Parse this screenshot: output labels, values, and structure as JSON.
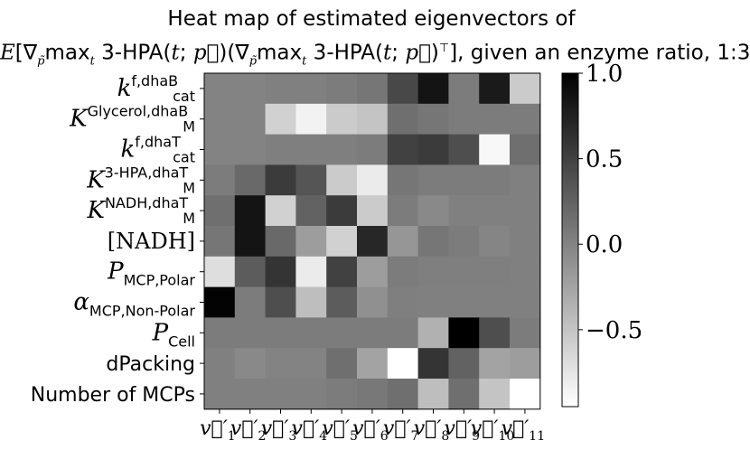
{
  "title": {
    "line1": "Heat map of estimated eigenvectors of",
    "line2": "E[∇p̃ maxt 3-HPA(t; p⃗)(∇p̃ maxt 3-HPA(t; p⃗)ᵀ], given an enzyme ratio, 1:3"
  },
  "chart_data": {
    "type": "heatmap",
    "title": "Heat map of estimated eigenvectors of E[∇p̃ maxt 3-HPA(t; p⃗)(∇p̃ maxt 3-HPA(t; p⃗)ᵀ], given an enzyme ratio, 1:3",
    "rows": [
      {
        "base": "k",
        "sup": "f,dhaB",
        "sub": "cat",
        "style": "math"
      },
      {
        "base": "K",
        "sup": "Glycerol,dhaB",
        "sub": "M",
        "style": "math"
      },
      {
        "base": "k",
        "sup": "f,dhaT",
        "sub": "cat",
        "style": "math"
      },
      {
        "base": "K",
        "sup": "3-HPA,dhaT",
        "sub": "M",
        "style": "math"
      },
      {
        "base": "K",
        "sup": "NADH,dhaT",
        "sub": "M",
        "style": "math"
      },
      {
        "base": "[NADH]",
        "sup": "",
        "sub": "",
        "style": "plain-serif"
      },
      {
        "base": "P",
        "sup": "",
        "sub": "MCP,Polar",
        "style": "math"
      },
      {
        "base": "α",
        "sup": "",
        "sub": "MCP,Non-Polar",
        "style": "math"
      },
      {
        "base": "P",
        "sup": "",
        "sub": "Cell",
        "style": "math"
      },
      {
        "base": "dPacking",
        "sup": "",
        "sub": "",
        "style": "plain"
      },
      {
        "base": "Number of MCPs",
        "sup": "",
        "sub": "",
        "style": "plain"
      }
    ],
    "columns": [
      {
        "base": "v⃗′",
        "sub": "1"
      },
      {
        "base": "v⃗′",
        "sub": "2"
      },
      {
        "base": "v⃗′",
        "sub": "3"
      },
      {
        "base": "v⃗′",
        "sub": "4"
      },
      {
        "base": "v⃗′",
        "sub": "5"
      },
      {
        "base": "v⃗′",
        "sub": "6"
      },
      {
        "base": "v⃗′",
        "sub": "7"
      },
      {
        "base": "v⃗′",
        "sub": "8"
      },
      {
        "base": "v⃗′",
        "sub": "9"
      },
      {
        "base": "v⃗′",
        "sub": "10"
      },
      {
        "base": "v⃗′",
        "sub": "11"
      }
    ],
    "values": [
      [
        0.0,
        0.0,
        0.02,
        0.02,
        0.05,
        0.1,
        0.45,
        0.85,
        0.05,
        0.8,
        -0.55
      ],
      [
        0.0,
        0.0,
        -0.6,
        -0.85,
        -0.55,
        -0.5,
        0.15,
        0.1,
        0.05,
        0.05,
        0.05
      ],
      [
        0.0,
        0.0,
        0.03,
        0.03,
        0.03,
        0.05,
        0.5,
        0.55,
        0.4,
        -0.9,
        0.15
      ],
      [
        0.05,
        0.2,
        0.55,
        0.35,
        -0.55,
        -0.8,
        0.1,
        0.05,
        0.05,
        0.05,
        0.02
      ],
      [
        0.15,
        0.85,
        -0.6,
        0.25,
        0.55,
        -0.55,
        0.05,
        -0.05,
        0.02,
        0.02,
        0.02
      ],
      [
        0.1,
        0.85,
        0.2,
        -0.2,
        -0.6,
        0.7,
        -0.15,
        0.1,
        0.05,
        -0.02,
        0.02
      ],
      [
        -0.7,
        0.3,
        0.6,
        -0.8,
        0.5,
        -0.2,
        0.05,
        0.03,
        0.03,
        0.03,
        0.02
      ],
      [
        0.98,
        0.05,
        0.4,
        -0.45,
        0.3,
        -0.1,
        0.03,
        0.02,
        0.02,
        0.02,
        0.02
      ],
      [
        0.05,
        0.05,
        0.05,
        0.05,
        0.05,
        0.05,
        0.05,
        -0.35,
        1.0,
        0.4,
        0.05
      ],
      [
        0.02,
        -0.05,
        0.0,
        0.0,
        0.15,
        -0.25,
        -0.95,
        0.6,
        0.25,
        -0.25,
        -0.2
      ],
      [
        0.02,
        0.02,
        0.02,
        0.02,
        0.05,
        0.08,
        0.15,
        -0.45,
        0.15,
        -0.5,
        -0.95
      ]
    ],
    "colorbar": {
      "vmin": -0.95,
      "vmax": 1.0,
      "ticks": [
        1.0,
        0.5,
        0.0,
        -0.5
      ],
      "tick_labels": [
        "1.0",
        "0.5",
        "0.0",
        "−0.5"
      ],
      "colormap": "Greys",
      "low_color": "#ffffff",
      "high_color": "#000000"
    },
    "grid": false
  }
}
